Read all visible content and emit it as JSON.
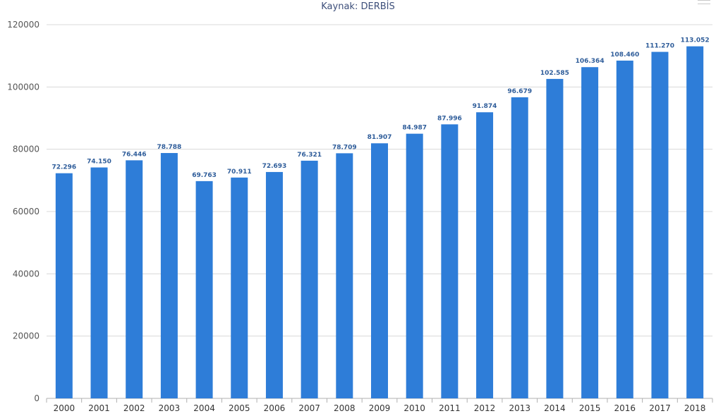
{
  "chart_data": {
    "type": "bar",
    "subtitle": "Kaynak: DERBİS",
    "categories": [
      "2000",
      "2001",
      "2002",
      "2003",
      "2004",
      "2005",
      "2006",
      "2007",
      "2008",
      "2009",
      "2010",
      "2011",
      "2012",
      "2013",
      "2014",
      "2015",
      "2016",
      "2017",
      "2018"
    ],
    "values": [
      72296,
      74150,
      76446,
      78788,
      69763,
      70911,
      72693,
      76321,
      78709,
      81907,
      84987,
      87996,
      91874,
      96679,
      102585,
      106364,
      108460,
      111270,
      113052
    ],
    "data_labels": [
      "72.296",
      "74.150",
      "76.446",
      "78.788",
      "69.763",
      "70.911",
      "72.693",
      "76.321",
      "78.709",
      "81.907",
      "84.987",
      "87.996",
      "91.874",
      "96.679",
      "102.585",
      "106.364",
      "108.460",
      "111.270",
      "113.052"
    ],
    "ylim": [
      0,
      120000
    ],
    "yticks": [
      "0",
      "20000",
      "40000",
      "60000",
      "80000",
      "100000",
      "120000"
    ],
    "grid": true,
    "bar_color": "#2e7dd8"
  }
}
